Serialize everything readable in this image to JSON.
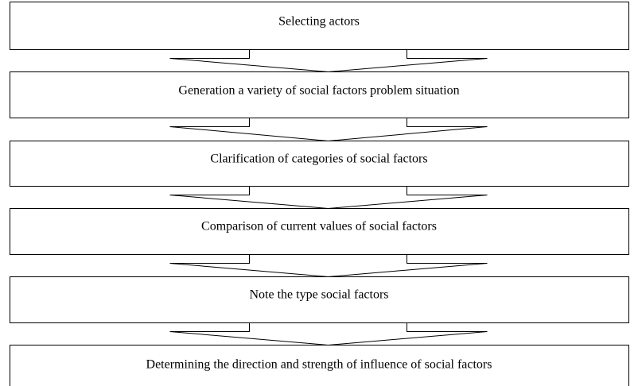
{
  "steps": [
    "Selecting actors",
    "Generation a variety of social factors problem situation",
    "Clarification of categories of social factors",
    "Comparison of current values of social factors",
    "Note the type social factors",
    "Determining the direction and strength of influence of social factors"
  ]
}
